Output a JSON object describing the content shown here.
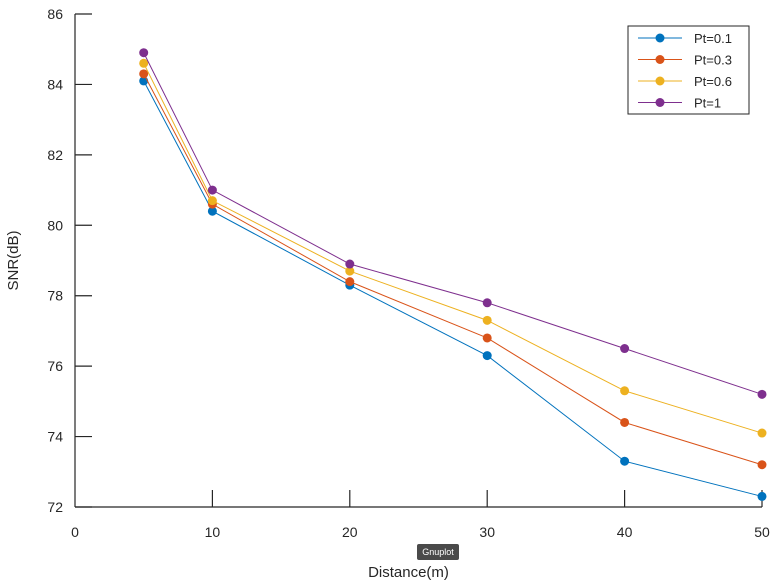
{
  "badge_label": "Gnuplot",
  "chart_data": {
    "type": "line",
    "title": "",
    "xlabel": "Distance(m)",
    "ylabel": "SNR(dB)",
    "xlim": [
      0,
      50
    ],
    "ylim": [
      72,
      86
    ],
    "xticks": [
      0,
      10,
      20,
      30,
      40,
      50
    ],
    "yticks": [
      72,
      74,
      76,
      78,
      80,
      82,
      84,
      86
    ],
    "x": [
      5,
      10,
      20,
      30,
      40,
      50
    ],
    "legend_position": "top-right",
    "grid": false,
    "series": [
      {
        "name": "Pt=0.1",
        "color": "#0072bd",
        "values": [
          84.1,
          80.4,
          78.3,
          76.3,
          73.3,
          72.3
        ]
      },
      {
        "name": "Pt=0.3",
        "color": "#d95319",
        "values": [
          84.3,
          80.6,
          78.4,
          76.8,
          74.4,
          73.2
        ]
      },
      {
        "name": "Pt=0.6",
        "color": "#edb120",
        "values": [
          84.6,
          80.7,
          78.7,
          77.3,
          75.3,
          74.1
        ]
      },
      {
        "name": "Pt=1",
        "color": "#7e2f8e",
        "values": [
          84.9,
          81.0,
          78.9,
          77.8,
          76.5,
          75.2
        ]
      }
    ]
  }
}
